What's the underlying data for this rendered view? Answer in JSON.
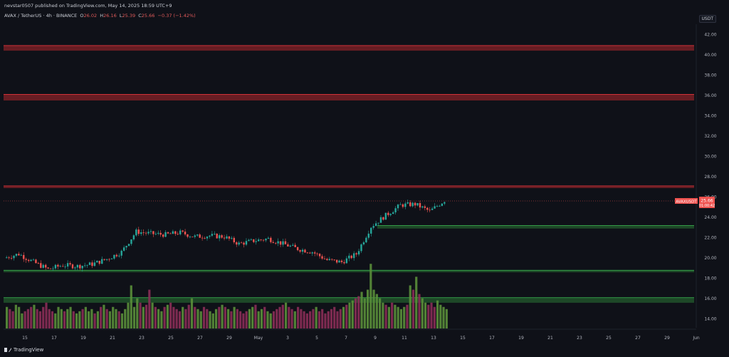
{
  "header": {
    "published_line": "nevstar0507 published on TradingView.com, May 14, 2025 18:59 UTC+9",
    "symbol": "AVAX / TetherUS · 4h · BINANCE",
    "open_label": "O",
    "open_value": "26.02",
    "high_label": "H",
    "high_value": "26.16",
    "low_label": "L",
    "low_value": "25.39",
    "close_label": "C",
    "close_value": "25.66",
    "change": "−0.37 (−1.42%)"
  },
  "price_axis": {
    "unit": "USDT",
    "labels": [
      "42.00",
      "40.00",
      "38.00",
      "36.00",
      "34.00",
      "32.00",
      "30.00",
      "28.00",
      "26.00",
      "24.00",
      "22.00",
      "20.00",
      "18.00",
      "16.00",
      "14.00"
    ]
  },
  "time_axis": {
    "labels": [
      "15",
      "17",
      "19",
      "21",
      "23",
      "25",
      "27",
      "29",
      "May",
      "3",
      "5",
      "7",
      "9",
      "11",
      "13",
      "15",
      "17",
      "19",
      "21",
      "23",
      "25",
      "27",
      "29",
      "Jun"
    ]
  },
  "last_price": {
    "symbol_tag": "AVAXUSDT",
    "price": "25.66",
    "countdown": "01:00:42"
  },
  "footer": {
    "logo_text": "TradingView"
  },
  "colors": {
    "background": "#0f1118",
    "up": "#26a69a",
    "down": "#ef5350",
    "resistance": "#b2282d",
    "support": "#2e8b3a",
    "vol_up": "#5a8f3a",
    "vol_down": "#8a2d57"
  },
  "chart_data": {
    "type": "candlestick",
    "title": "",
    "xlabel": "",
    "ylabel": "",
    "ylim": [
      13,
      43
    ],
    "resistance_zones": [
      [
        40.4,
        40.9
      ],
      [
        35.5,
        36.1
      ],
      [
        26.9,
        27.1
      ]
    ],
    "support_zones": [
      [
        22.9,
        23.2
      ],
      [
        18.6,
        18.8
      ],
      [
        15.6,
        16.1
      ]
    ],
    "close_path": [
      {
        "date": "Apr 14",
        "close": 20.0
      },
      {
        "date": "Apr 15",
        "close": 20.4
      },
      {
        "date": "Apr 16",
        "close": 19.6
      },
      {
        "date": "Apr 17",
        "close": 18.9
      },
      {
        "date": "Apr 18",
        "close": 19.3
      },
      {
        "date": "Apr 19",
        "close": 19.2
      },
      {
        "date": "Apr 20",
        "close": 19.4
      },
      {
        "date": "Apr 21",
        "close": 19.9
      },
      {
        "date": "Apr 22",
        "close": 20.6
      },
      {
        "date": "Apr 23",
        "close": 22.6
      },
      {
        "date": "Apr 24",
        "close": 22.4
      },
      {
        "date": "Apr 25",
        "close": 22.3
      },
      {
        "date": "Apr 26",
        "close": 22.5
      },
      {
        "date": "Apr 27",
        "close": 22.1
      },
      {
        "date": "Apr 28",
        "close": 22.2
      },
      {
        "date": "Apr 29",
        "close": 22.1
      },
      {
        "date": "Apr 30",
        "close": 21.4
      },
      {
        "date": "May 1",
        "close": 21.7
      },
      {
        "date": "May 2",
        "close": 21.9
      },
      {
        "date": "May 3",
        "close": 21.4
      },
      {
        "date": "May 4",
        "close": 20.9
      },
      {
        "date": "May 5",
        "close": 20.6
      },
      {
        "date": "May 6",
        "close": 19.8
      },
      {
        "date": "May 7",
        "close": 19.6
      },
      {
        "date": "May 8",
        "close": 20.4
      },
      {
        "date": "May 9",
        "close": 23.1
      },
      {
        "date": "May 10",
        "close": 24.2
      },
      {
        "date": "May 11",
        "close": 25.2
      },
      {
        "date": "May 12",
        "close": 25.3
      },
      {
        "date": "May 13",
        "close": 24.6
      },
      {
        "date": "May 14",
        "close": 25.66
      }
    ],
    "volume_profile": [
      0.5,
      0.45,
      0.4,
      0.55,
      0.5,
      0.35,
      0.4,
      0.45,
      0.5,
      0.55,
      0.45,
      0.4,
      0.5,
      0.6,
      0.45,
      0.4,
      0.35,
      0.5,
      0.45,
      0.4,
      0.45,
      0.5,
      0.4,
      0.35,
      0.4,
      0.45,
      0.5,
      0.4,
      0.45,
      0.35,
      0.4,
      0.5,
      0.55,
      0.45,
      0.4,
      0.5,
      0.45,
      0.4,
      0.35,
      0.45,
      0.6,
      1.0,
      0.5,
      0.7,
      0.6,
      0.5,
      0.55,
      0.9,
      0.6,
      0.5,
      0.45,
      0.4,
      0.5,
      0.55,
      0.6,
      0.5,
      0.45,
      0.4,
      0.5,
      0.45,
      0.55,
      0.7,
      0.5,
      0.45,
      0.4,
      0.5,
      0.45,
      0.4,
      0.35,
      0.45,
      0.5,
      0.55,
      0.5,
      0.45,
      0.4,
      0.5,
      0.45,
      0.4,
      0.35,
      0.4,
      0.45,
      0.5,
      0.55,
      0.4,
      0.45,
      0.5,
      0.4,
      0.35,
      0.4,
      0.45,
      0.5,
      0.55,
      0.6,
      0.5,
      0.45,
      0.4,
      0.5,
      0.45,
      0.4,
      0.35,
      0.4,
      0.45,
      0.5,
      0.4,
      0.45,
      0.35,
      0.4,
      0.45,
      0.5,
      0.4,
      0.45,
      0.5,
      0.55,
      0.6,
      0.65,
      0.7,
      0.75,
      0.85,
      0.7,
      0.9,
      1.5,
      0.9,
      0.8,
      0.7,
      0.6,
      0.55,
      0.5,
      0.6,
      0.55,
      0.5,
      0.45,
      0.5,
      0.55,
      1.0,
      0.9,
      1.2,
      0.8,
      0.7,
      0.6,
      0.55,
      0.6,
      0.5,
      0.65,
      0.55,
      0.5,
      0.45
    ]
  }
}
